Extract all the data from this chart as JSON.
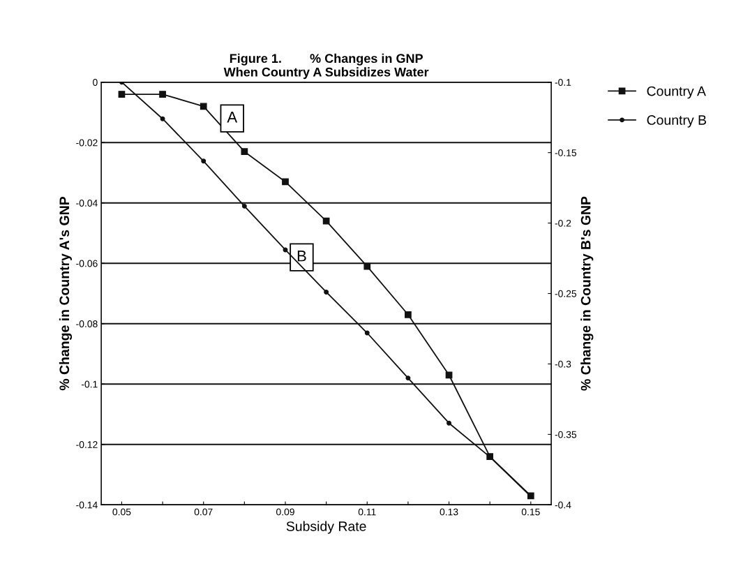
{
  "chart_data": {
    "type": "line",
    "title": "Figure 1.        % Changes in GNP\nWhen Country A Subsidizes Water",
    "xlabel": "Subsidy Rate",
    "ylabel": "% Change in Country A's GNP",
    "y2label": "% Change in Country B's GNP",
    "x": [
      0.05,
      0.06,
      0.07,
      0.08,
      0.09,
      0.1,
      0.11,
      0.12,
      0.13,
      0.14,
      0.15
    ],
    "series": [
      {
        "name": "Country A",
        "color": "#111111",
        "marker": "square",
        "values": [
          -0.004,
          -0.004,
          -0.008,
          -0.023,
          -0.033,
          -0.046,
          -0.061,
          -0.077,
          -0.097,
          -0.124,
          -0.137
        ]
      },
      {
        "name": "Country B",
        "color": "#111111",
        "marker": "circle",
        "axis": "y2",
        "values": [
          -0.1,
          -0.126,
          -0.156,
          -0.188,
          -0.219,
          -0.249,
          -0.278,
          -0.31,
          -0.342,
          -0.366,
          -0.394
        ]
      }
    ],
    "xlim": [
      0.045,
      0.155
    ],
    "xticks": [
      0.05,
      {
        "value": 0.06,
        "label": null
      },
      0.07,
      {
        "value": 0.08,
        "label": null
      },
      0.09,
      {
        "value": 0.1,
        "label": null
      },
      0.11,
      {
        "value": 0.12,
        "label": null
      },
      0.13,
      {
        "value": 0.14,
        "label": null
      },
      0.15
    ],
    "ylim": [
      -0.14,
      0
    ],
    "yticks": [
      0,
      -0.02,
      -0.04,
      -0.06,
      -0.08,
      -0.1,
      -0.12,
      -0.14
    ],
    "y2lim": [
      -0.4,
      -0.1
    ],
    "y2ticks": [
      -0.1,
      -0.15,
      -0.2,
      -0.25,
      -0.3,
      -0.35,
      -0.4
    ],
    "annotations": [
      {
        "text": "A",
        "x": 0.077,
        "y": -0.012
      },
      {
        "text": "B",
        "x": 0.094,
        "y": -0.058
      }
    ],
    "grid": "y",
    "legend": "top right",
    "line_style": "solid"
  }
}
